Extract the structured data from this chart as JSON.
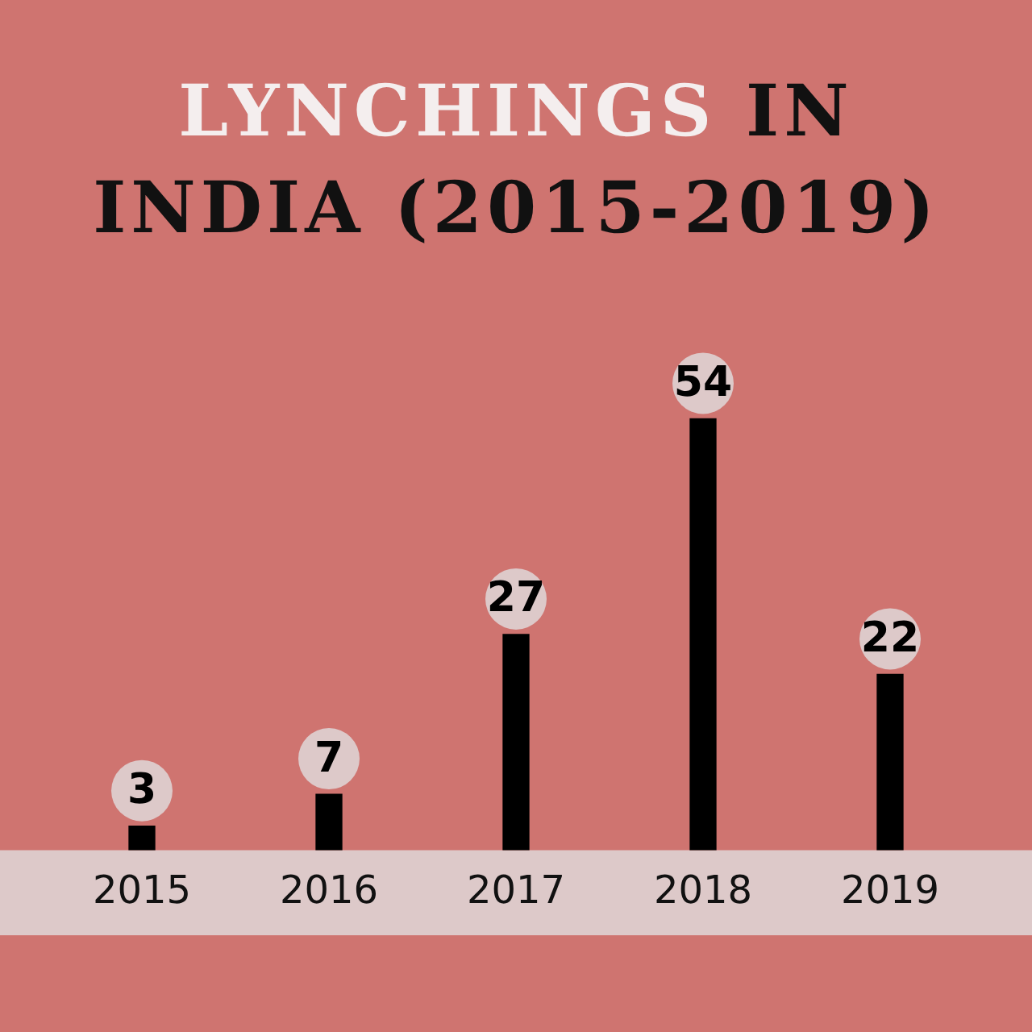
{
  "chart_data": {
    "type": "bar",
    "title": "LYNCHINGS IN INDIA (2015-2019)",
    "categories": [
      "2015",
      "2016",
      "2017",
      "2018",
      "2019"
    ],
    "values": [
      3,
      7,
      27,
      54,
      22
    ],
    "color": "#000000",
    "data_labels": true,
    "grid": false,
    "legend": false,
    "tick_labels": "x"
  }
}
